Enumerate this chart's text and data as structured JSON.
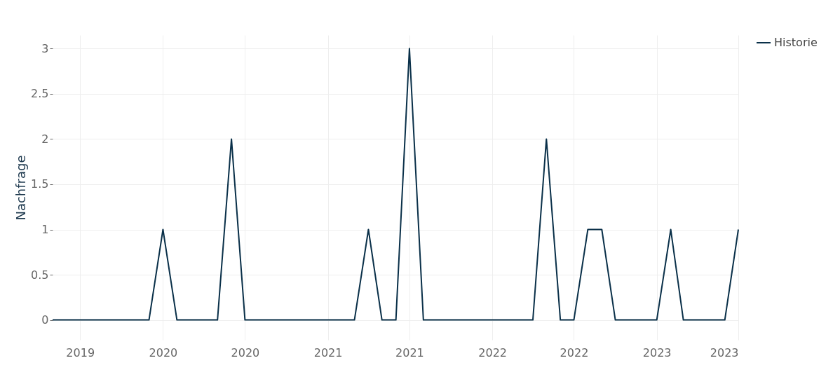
{
  "chart_data": {
    "type": "line",
    "ylabel": "Nachfrage",
    "x": [
      "2019-05",
      "2019-06",
      "2019-07",
      "2019-08",
      "2019-09",
      "2019-10",
      "2019-11",
      "2019-12",
      "2020-01",
      "2020-02",
      "2020-03",
      "2020-04",
      "2020-05",
      "2020-06",
      "2020-07",
      "2020-08",
      "2020-09",
      "2020-10",
      "2020-11",
      "2020-12",
      "2021-01",
      "2021-02",
      "2021-03",
      "2021-04",
      "2021-05",
      "2021-06",
      "2021-07",
      "2021-08",
      "2021-09",
      "2021-10",
      "2021-11",
      "2021-12",
      "2022-01",
      "2022-02",
      "2022-03",
      "2022-04",
      "2022-05",
      "2022-06",
      "2022-07",
      "2022-08",
      "2022-09",
      "2022-10",
      "2022-11",
      "2022-12",
      "2023-01",
      "2023-02",
      "2023-03",
      "2023-04",
      "2023-05",
      "2023-06",
      "2023-07"
    ],
    "series": [
      {
        "name": "Historie",
        "color": "#0a3049",
        "values": [
          0,
          0,
          0,
          0,
          0,
          0,
          0,
          0,
          1,
          0,
          0,
          0,
          0,
          2,
          0,
          0,
          0,
          0,
          0,
          0,
          0,
          0,
          0,
          1,
          0,
          0,
          3,
          0,
          0,
          0,
          0,
          0,
          0,
          0,
          0,
          0,
          2,
          0,
          0,
          1,
          1,
          0,
          0,
          0,
          0,
          1,
          0,
          0,
          0,
          0,
          1
        ]
      }
    ],
    "xlim": [
      "2019-05",
      "2023-07"
    ],
    "xticks": [
      {
        "value": "2019-07",
        "label": "2019"
      },
      {
        "value": "2020-01",
        "label": "2020"
      },
      {
        "value": "2020-07",
        "label": "2020"
      },
      {
        "value": "2021-01",
        "label": "2021"
      },
      {
        "value": "2021-07",
        "label": "2021"
      },
      {
        "value": "2022-01",
        "label": "2022"
      },
      {
        "value": "2022-07",
        "label": "2022"
      },
      {
        "value": "2023-01",
        "label": "2023"
      },
      {
        "value": "2023-07",
        "label": "2023"
      }
    ],
    "ylim": [
      -0.22,
      3.15
    ],
    "yticks": [
      0,
      0.5,
      1,
      1.5,
      2,
      2.5,
      3
    ],
    "grid": true,
    "legend": "top right",
    "marker": "none",
    "line_style": "solid"
  }
}
